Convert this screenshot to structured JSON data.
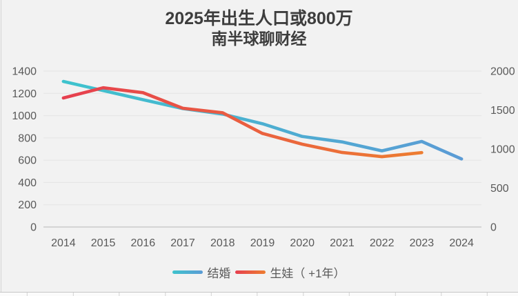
{
  "page": {
    "background": "#f2f2f2"
  },
  "chart_data": {
    "type": "line",
    "title": "2025年出生人口或800万",
    "subtitle": "南半球聊财经",
    "categories": [
      "2014",
      "2015",
      "2016",
      "2017",
      "2018",
      "2019",
      "2020",
      "2021",
      "2022",
      "2023",
      "2024"
    ],
    "series": [
      {
        "name": "结婚",
        "axis": "left",
        "color_start": "#3ec3cd",
        "color_end": "#5b9bd5",
        "values": [
          1307,
          1225,
          1143,
          1063,
          1014,
          927,
          813,
          764,
          684,
          768,
          611
        ]
      },
      {
        "name": "生娃（ +1年）",
        "axis": "right",
        "color_start": "#e63f4f",
        "color_end": "#ed7d31",
        "values": [
          1655,
          1786,
          1723,
          1523,
          1465,
          1200,
          1062,
          956,
          902,
          954,
          null
        ]
      }
    ],
    "left_axis": {
      "min": 0,
      "max": 1400,
      "step": 200,
      "tick_labels": [
        "1400",
        "1200",
        "1000",
        "800",
        "600",
        "400",
        "200",
        "0"
      ]
    },
    "right_axis": {
      "min": 0,
      "max": 2000,
      "step": 500,
      "tick_labels": [
        "2000",
        "1500",
        "1000",
        "500",
        "0"
      ]
    },
    "grid": true,
    "legend_position": "bottom",
    "colors": {
      "background": "#f2f2f2",
      "gridline": "#e4e4e4",
      "baseline": "#c9c9c9",
      "axis_text": "#595959",
      "title_text": "#3d3d3d"
    }
  }
}
